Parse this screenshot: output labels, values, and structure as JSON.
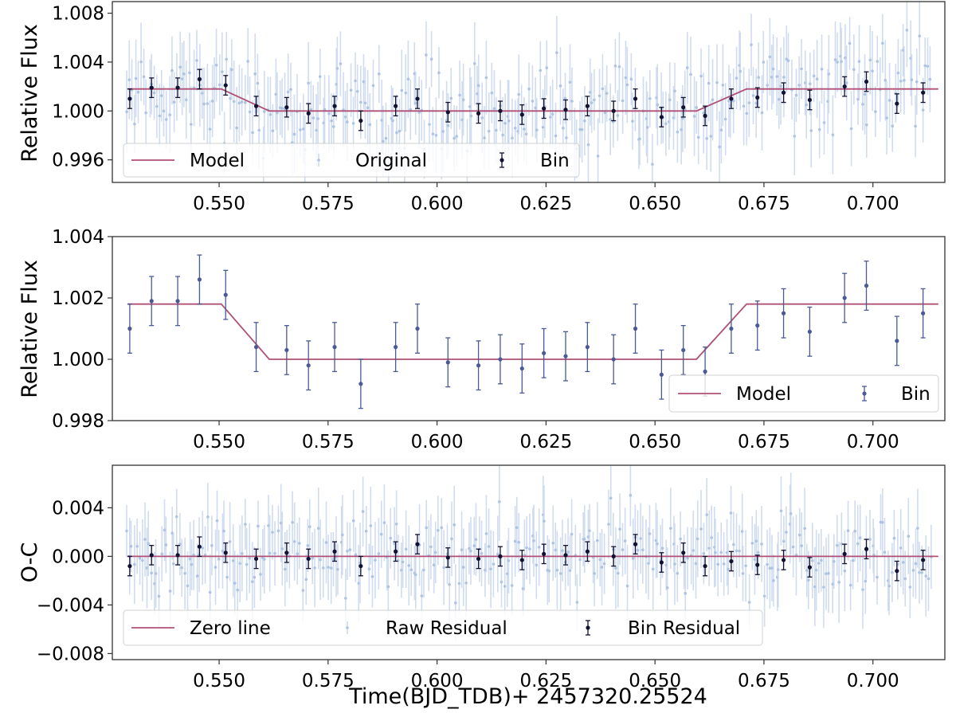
{
  "colors": {
    "model": "#b05076",
    "raw_points": "#aec4e2",
    "raw_errbars": "#c8d6ec",
    "bin_top": "#111131",
    "bin_middle": "#4a5a95",
    "bin_bottom": "#111131"
  },
  "chart_data": [
    {
      "type": "scatter",
      "panel": "top",
      "ylabel": "Relative Flux",
      "xlim": [
        0.5255,
        0.7165
      ],
      "ylim": [
        0.99415,
        1.00895
      ],
      "xticks": [
        "0.550",
        "0.575",
        "0.600",
        "0.625",
        "0.650",
        "0.675",
        "0.700"
      ],
      "yticks": [
        "0.996",
        "1.000",
        "1.004",
        "1.008"
      ],
      "legend": {
        "placement": "lower-left",
        "entries": [
          "Model",
          "Original",
          "Bin"
        ]
      },
      "model": {
        "name": "Model",
        "baseline": 1.0018,
        "depth": 0.0018,
        "ingress_start": 0.5505,
        "ingress_end": 0.5615,
        "egress_start": 0.6595,
        "egress_end": 0.671
      },
      "raw": {
        "name": "Original",
        "count": 320,
        "scatter": 0.0018,
        "error": 0.0026,
        "note": "individual exposures, scattered around the model"
      },
      "bin": {
        "name": "Bin",
        "x": [
          0.5295,
          0.5345,
          0.5405,
          0.5455,
          0.5515,
          0.5585,
          0.5655,
          0.5705,
          0.5765,
          0.5825,
          0.5905,
          0.5955,
          0.6025,
          0.6095,
          0.6145,
          0.6195,
          0.6245,
          0.6295,
          0.6345,
          0.6405,
          0.6455,
          0.6515,
          0.6565,
          0.6615,
          0.6675,
          0.6735,
          0.6795,
          0.6855,
          0.6935,
          0.6985,
          0.7055,
          0.7115
        ],
        "y": [
          1.001,
          1.0019,
          1.0019,
          1.0026,
          1.0021,
          1.0004,
          1.0003,
          0.9998,
          1.0004,
          0.9992,
          1.0004,
          1.001,
          0.9999,
          0.9998,
          1.0,
          0.9997,
          1.0002,
          1.0001,
          1.0004,
          1.0,
          1.001,
          0.9995,
          1.0003,
          0.9996,
          1.001,
          1.0011,
          1.0015,
          1.0009,
          1.002,
          1.0024,
          1.0006,
          1.0015
        ],
        "yerr": [
          0.0008,
          0.0008,
          0.0008,
          0.0008,
          0.0008,
          0.0008,
          0.0008,
          0.0008,
          0.0008,
          0.0008,
          0.0008,
          0.0008,
          0.0008,
          0.0008,
          0.0008,
          0.0008,
          0.0008,
          0.0008,
          0.0008,
          0.0008,
          0.0008,
          0.0008,
          0.0008,
          0.0008,
          0.0008,
          0.0008,
          0.0008,
          0.0008,
          0.0008,
          0.0008,
          0.0008,
          0.0008
        ]
      }
    },
    {
      "type": "scatter",
      "panel": "middle",
      "ylabel": "Relative Flux",
      "xlim": [
        0.5255,
        0.7165
      ],
      "ylim": [
        0.998,
        1.004
      ],
      "xticks": [
        "0.550",
        "0.575",
        "0.600",
        "0.625",
        "0.650",
        "0.675",
        "0.700"
      ],
      "yticks": [
        "0.998",
        "1.000",
        "1.002",
        "1.004"
      ],
      "legend": {
        "placement": "lower-right",
        "entries": [
          "Model",
          "Bin"
        ]
      },
      "model": {
        "name": "Model",
        "baseline": 1.0018,
        "depth": 0.0018,
        "ingress_start": 0.5505,
        "ingress_end": 0.5615,
        "egress_start": 0.6595,
        "egress_end": 0.671
      },
      "bin": {
        "name": "Bin",
        "x": [
          0.5295,
          0.5345,
          0.5405,
          0.5455,
          0.5515,
          0.5585,
          0.5655,
          0.5705,
          0.5765,
          0.5825,
          0.5905,
          0.5955,
          0.6025,
          0.6095,
          0.6145,
          0.6195,
          0.6245,
          0.6295,
          0.6345,
          0.6405,
          0.6455,
          0.6515,
          0.6565,
          0.6615,
          0.6675,
          0.6735,
          0.6795,
          0.6855,
          0.6935,
          0.6985,
          0.7055,
          0.7115
        ],
        "y": [
          1.001,
          1.0019,
          1.0019,
          1.0026,
          1.0021,
          1.0004,
          1.0003,
          0.9998,
          1.0004,
          0.9992,
          1.0004,
          1.001,
          0.9999,
          0.9998,
          1.0,
          0.9997,
          1.0002,
          1.0001,
          1.0004,
          1.0,
          1.001,
          0.9995,
          1.0003,
          0.9996,
          1.001,
          1.0011,
          1.0015,
          1.0009,
          1.002,
          1.0024,
          1.0006,
          1.0015
        ],
        "yerr": [
          0.0008,
          0.0008,
          0.0008,
          0.0008,
          0.0008,
          0.0008,
          0.0008,
          0.0008,
          0.0008,
          0.0008,
          0.0008,
          0.0008,
          0.0008,
          0.0008,
          0.0008,
          0.0008,
          0.0008,
          0.0008,
          0.0008,
          0.0008,
          0.0008,
          0.0008,
          0.0008,
          0.0008,
          0.0008,
          0.0008,
          0.0008,
          0.0008,
          0.0008,
          0.0008,
          0.0008,
          0.0008
        ]
      }
    },
    {
      "type": "scatter",
      "panel": "bottom",
      "ylabel": "O-C",
      "xlabel": "Time(BJD_TDB)+ 2457320.25524",
      "xlim": [
        0.5255,
        0.7165
      ],
      "ylim": [
        -0.0085,
        0.0075
      ],
      "xticks": [
        "0.550",
        "0.575",
        "0.600",
        "0.625",
        "0.650",
        "0.675",
        "0.700"
      ],
      "yticks": [
        "−0.008",
        "−0.004",
        "0.000",
        "0.004"
      ],
      "legend": {
        "placement": "lower-left",
        "entries": [
          "Zero line",
          "Raw Residual",
          "Bin Residual"
        ]
      },
      "zero_line": {
        "name": "Zero line",
        "y": 0.0
      },
      "raw": {
        "name": "Raw Residual",
        "count": 320,
        "scatter": 0.0018,
        "error": 0.0026
      },
      "bin": {
        "name": "Bin Residual",
        "x": [
          0.5295,
          0.5345,
          0.5405,
          0.5455,
          0.5515,
          0.5585,
          0.5655,
          0.5705,
          0.5765,
          0.5825,
          0.5905,
          0.5955,
          0.6025,
          0.6095,
          0.6145,
          0.6195,
          0.6245,
          0.6295,
          0.6345,
          0.6405,
          0.6455,
          0.6515,
          0.6565,
          0.6615,
          0.6675,
          0.6735,
          0.6795,
          0.6855,
          0.6935,
          0.6985,
          0.7055,
          0.7115
        ],
        "y": [
          -0.0008,
          0.0001,
          0.0001,
          0.0008,
          0.0003,
          -0.0002,
          0.0003,
          -0.0002,
          0.0004,
          -0.0008,
          0.0004,
          0.001,
          -0.0001,
          -0.0002,
          0.0,
          -0.0003,
          0.0002,
          0.0001,
          0.0004,
          0.0,
          0.001,
          -0.0005,
          0.0003,
          -0.0008,
          -0.0004,
          -0.0007,
          -0.0003,
          -0.0009,
          0.0002,
          0.0006,
          -0.0012,
          -0.0003
        ],
        "yerr": [
          0.0008,
          0.0008,
          0.0008,
          0.0008,
          0.0008,
          0.0008,
          0.0008,
          0.0008,
          0.0008,
          0.0008,
          0.0008,
          0.0008,
          0.0008,
          0.0008,
          0.0008,
          0.0008,
          0.0008,
          0.0008,
          0.0008,
          0.0008,
          0.0008,
          0.0008,
          0.0008,
          0.0008,
          0.0008,
          0.0008,
          0.0008,
          0.0008,
          0.0008,
          0.0008,
          0.0008,
          0.0008
        ]
      }
    }
  ]
}
